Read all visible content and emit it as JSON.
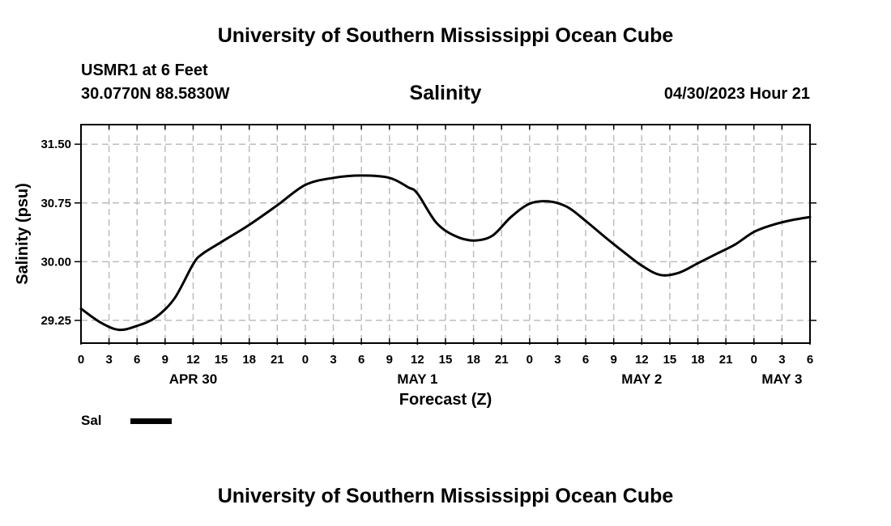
{
  "header": {
    "title_top": "University of Southern Mississippi Ocean Cube",
    "title_bottom": "University of Southern Mississippi Ocean Cube",
    "station": "USMR1 at 6 Feet",
    "coords": "30.0770N  88.5830W",
    "run_time": "04/30/2023 Hour 21"
  },
  "legend": {
    "label": "Sal",
    "color": "#000000"
  },
  "chart_data": {
    "type": "line",
    "title": "Salinity",
    "xlabel": "Forecast (Z)",
    "ylabel": "Salinity (psu)",
    "x_unit": "forecast hour (0 = Apr 30 00Z)",
    "xlim": [
      0,
      78
    ],
    "ylim": [
      28.96,
      31.75
    ],
    "y_ticks": [
      29.25,
      30.0,
      30.75,
      31.5
    ],
    "y_tick_labels": [
      "29.25",
      "30.00",
      "30.75",
      "31.50"
    ],
    "x_tick_hours": [
      0,
      3,
      6,
      9,
      12,
      15,
      18,
      21,
      24,
      27,
      30,
      33,
      36,
      39,
      42,
      45,
      48,
      51,
      54,
      57,
      60,
      63,
      66,
      69,
      72,
      75,
      78
    ],
    "x_tick_labels": [
      "0",
      "3",
      "6",
      "9",
      "12",
      "15",
      "18",
      "21",
      "0",
      "3",
      "6",
      "9",
      "12",
      "15",
      "18",
      "21",
      "0",
      "3",
      "6",
      "9",
      "12",
      "15",
      "18",
      "21",
      "0",
      "3",
      "6"
    ],
    "date_labels": [
      {
        "hour": 12,
        "text": "APR 30"
      },
      {
        "hour": 36,
        "text": "MAY 1"
      },
      {
        "hour": 60,
        "text": "MAY 2"
      },
      {
        "hour": 75,
        "text": "MAY 3"
      }
    ],
    "grid": true,
    "series": [
      {
        "name": "Sal",
        "color": "#000000",
        "x": [
          0,
          2,
          4,
          6,
          8,
          10,
          12,
          13,
          15,
          18,
          21,
          24,
          27,
          30,
          33,
          35,
          36,
          38,
          40,
          42,
          44,
          46,
          48,
          50,
          52,
          54,
          56,
          58,
          60,
          62,
          64,
          66,
          68,
          70,
          72,
          74,
          76,
          78
        ],
        "values": [
          29.4,
          29.23,
          29.13,
          29.18,
          29.29,
          29.53,
          29.97,
          30.1,
          30.25,
          30.47,
          30.72,
          30.98,
          31.07,
          31.1,
          31.07,
          30.95,
          30.87,
          30.5,
          30.33,
          30.27,
          30.33,
          30.57,
          30.74,
          30.77,
          30.7,
          30.52,
          30.32,
          30.13,
          29.95,
          29.83,
          29.86,
          29.98,
          30.1,
          30.22,
          30.38,
          30.47,
          30.53,
          30.57
        ]
      }
    ]
  }
}
